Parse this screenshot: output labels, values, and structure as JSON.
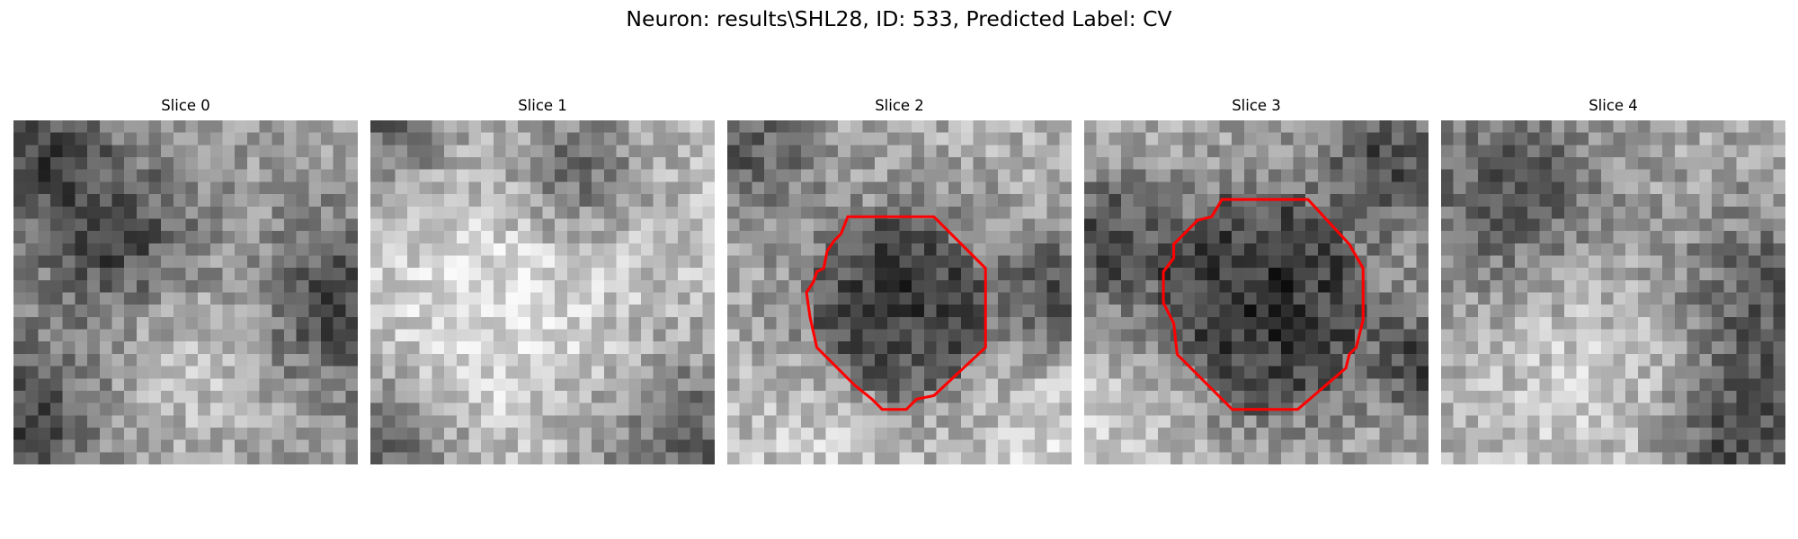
{
  "figure": {
    "title": "Neuron: results\\SHL28, ID: 533, Predicted Label: CV"
  },
  "colormap": "gray",
  "contour_color": "#ff0000",
  "grid_size": 28,
  "slices": [
    {
      "title": "Slice 0",
      "has_contour": false,
      "tone": {
        "base": 0.62,
        "dark_spots": [
          [
            0.02,
            0.05,
            0.18
          ],
          [
            0.3,
            0.35,
            0.16
          ],
          [
            0.95,
            0.55,
            0.18
          ],
          [
            0.05,
            0.85,
            0.15
          ]
        ],
        "light_spots": [
          [
            0.55,
            0.7,
            0.2
          ]
        ]
      }
    },
    {
      "title": "Slice 1",
      "has_contour": false,
      "tone": {
        "base": 0.74,
        "dark_spots": [
          [
            0.05,
            0.03,
            0.14
          ],
          [
            0.6,
            0.15,
            0.14
          ],
          [
            0.92,
            0.95,
            0.22
          ],
          [
            0.05,
            0.95,
            0.15
          ]
        ],
        "light_spots": [
          [
            0.4,
            0.55,
            0.3
          ]
        ]
      }
    },
    {
      "title": "Slice 2",
      "has_contour": true,
      "contour": [
        [
          0.35,
          0.28
        ],
        [
          0.6,
          0.28
        ],
        [
          0.75,
          0.43
        ],
        [
          0.75,
          0.66
        ],
        [
          0.6,
          0.8
        ],
        [
          0.55,
          0.81
        ],
        [
          0.52,
          0.84
        ],
        [
          0.45,
          0.84
        ],
        [
          0.42,
          0.81
        ],
        [
          0.37,
          0.77
        ],
        [
          0.26,
          0.66
        ],
        [
          0.24,
          0.57
        ],
        [
          0.23,
          0.5
        ],
        [
          0.25,
          0.47
        ],
        [
          0.26,
          0.44
        ],
        [
          0.28,
          0.43
        ],
        [
          0.29,
          0.38
        ],
        [
          0.31,
          0.35
        ],
        [
          0.33,
          0.33
        ]
      ],
      "tone": {
        "base": 0.7,
        "dark_spots": [
          [
            0.5,
            0.55,
            0.24
          ],
          [
            0.05,
            0.08,
            0.14
          ],
          [
            0.98,
            0.5,
            0.12
          ]
        ],
        "light_spots": [
          [
            0.3,
            0.92,
            0.18
          ],
          [
            0.9,
            0.9,
            0.18
          ]
        ]
      }
    },
    {
      "title": "Slice 3",
      "has_contour": true,
      "contour": [
        [
          0.4,
          0.23
        ],
        [
          0.65,
          0.23
        ],
        [
          0.77,
          0.36
        ],
        [
          0.81,
          0.43
        ],
        [
          0.81,
          0.58
        ],
        [
          0.79,
          0.66
        ],
        [
          0.77,
          0.68
        ],
        [
          0.76,
          0.72
        ],
        [
          0.62,
          0.84
        ],
        [
          0.43,
          0.84
        ],
        [
          0.27,
          0.68
        ],
        [
          0.26,
          0.59
        ],
        [
          0.23,
          0.53
        ],
        [
          0.23,
          0.44
        ],
        [
          0.26,
          0.4
        ],
        [
          0.26,
          0.36
        ],
        [
          0.33,
          0.29
        ],
        [
          0.37,
          0.28
        ]
      ],
      "tone": {
        "base": 0.68,
        "dark_spots": [
          [
            0.52,
            0.53,
            0.27
          ],
          [
            0.05,
            0.35,
            0.14
          ],
          [
            0.9,
            0.1,
            0.14
          ],
          [
            0.98,
            0.7,
            0.1
          ]
        ],
        "light_spots": [
          [
            0.1,
            0.88,
            0.18
          ]
        ]
      }
    },
    {
      "title": "Slice 4",
      "has_contour": false,
      "tone": {
        "base": 0.68,
        "dark_spots": [
          [
            0.2,
            0.22,
            0.22
          ],
          [
            0.95,
            0.55,
            0.22
          ],
          [
            0.85,
            0.95,
            0.14
          ]
        ],
        "light_spots": [
          [
            0.45,
            0.7,
            0.25
          ]
        ]
      }
    }
  ]
}
